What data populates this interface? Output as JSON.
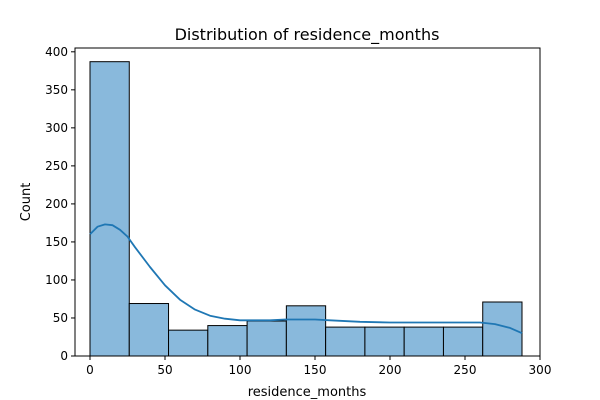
{
  "chart_data": {
    "type": "bar",
    "subtype": "histogram-with-kde",
    "title": "Distribution of residence_months",
    "xlabel": "residence_months",
    "ylabel": "Count",
    "xlim": [
      -10,
      300
    ],
    "ylim": [
      0,
      405
    ],
    "x_ticks": [
      0,
      50,
      100,
      150,
      200,
      250,
      300
    ],
    "y_ticks": [
      0,
      50,
      100,
      150,
      200,
      250,
      300,
      350,
      400
    ],
    "bin_edges": [
      0,
      26.18,
      52.36,
      78.55,
      104.73,
      130.91,
      157.09,
      183.27,
      209.45,
      235.64,
      261.82,
      288
    ],
    "values": [
      387,
      69,
      34,
      40,
      46,
      66,
      38,
      38,
      38,
      38,
      71
    ],
    "kde": {
      "x": [
        0,
        5,
        10,
        15,
        20,
        25,
        30,
        40,
        50,
        60,
        70,
        80,
        90,
        100,
        110,
        120,
        130,
        140,
        150,
        160,
        180,
        200,
        220,
        240,
        260,
        270,
        280,
        288
      ],
      "y": [
        160,
        170,
        173,
        172,
        166,
        157,
        143,
        117,
        93,
        74,
        61,
        53,
        49,
        47,
        47,
        47,
        48,
        48,
        48,
        47,
        45,
        44,
        44,
        44,
        44,
        42,
        37,
        30
      ]
    },
    "grid": false,
    "colors": {
      "bar_fill": "#89b9dc",
      "bar_edge": "#000000",
      "kde_line": "#1f77b4"
    }
  }
}
